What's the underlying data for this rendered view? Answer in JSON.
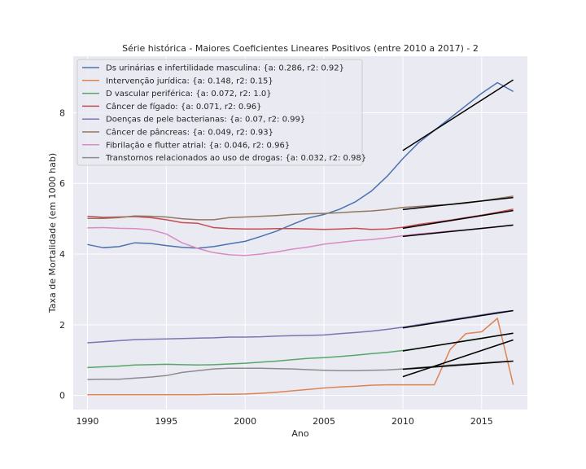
{
  "chart_data": {
    "type": "line",
    "title": "Série histórica - Maiores Coeficientes Lineares Positivos (entre 2010 a 2017) - 2",
    "xlabel": "Ano",
    "ylabel": "Taxa de Mortalidade (em 1000 hab)",
    "xlim": [
      1989.1,
      2017.9
    ],
    "ylim": [
      -0.4,
      9.6
    ],
    "x_ticks": [
      1990,
      1995,
      2000,
      2005,
      2010,
      2015
    ],
    "y_ticks": [
      0,
      2,
      4,
      6,
      8
    ],
    "grid": true,
    "legend_position": "upper-left",
    "background": "#eaeaf2",
    "x": [
      1990,
      1991,
      1992,
      1993,
      1994,
      1995,
      1996,
      1997,
      1998,
      1999,
      2000,
      2001,
      2002,
      2003,
      2004,
      2005,
      2006,
      2007,
      2008,
      2009,
      2010,
      2011,
      2012,
      2013,
      2014,
      2015,
      2016,
      2017
    ],
    "series": [
      {
        "name": "Ds urinárias e infertilidade masculina: {a: 0.286, r2: 0.92}",
        "color": "#4c72b0",
        "values": [
          4.27,
          4.18,
          4.21,
          4.32,
          4.3,
          4.24,
          4.19,
          4.17,
          4.21,
          4.29,
          4.36,
          4.5,
          4.65,
          4.84,
          5.02,
          5.12,
          5.27,
          5.48,
          5.78,
          6.2,
          6.7,
          7.15,
          7.5,
          7.85,
          8.2,
          8.55,
          8.85,
          8.6
        ],
        "trend": [
          6.93,
          8.93
        ]
      },
      {
        "name": "Intervenção jurídica: {a: 0.148, r2: 0.15}",
        "color": "#dd8452",
        "values": [
          0.02,
          0.02,
          0.02,
          0.02,
          0.02,
          0.02,
          0.02,
          0.02,
          0.03,
          0.03,
          0.04,
          0.06,
          0.09,
          0.13,
          0.17,
          0.21,
          0.24,
          0.26,
          0.29,
          0.3,
          0.3,
          0.3,
          0.3,
          1.3,
          1.75,
          1.8,
          2.18,
          0.3
        ],
        "trend": [
          0.53,
          1.57
        ]
      },
      {
        "name": "D vascular periférica: {a: 0.072, r2: 1.0}",
        "color": "#55a868",
        "values": [
          0.79,
          0.81,
          0.83,
          0.86,
          0.87,
          0.88,
          0.87,
          0.86,
          0.87,
          0.89,
          0.91,
          0.94,
          0.97,
          1.01,
          1.05,
          1.07,
          1.1,
          1.14,
          1.18,
          1.22,
          1.27,
          1.33,
          1.4,
          1.47,
          1.54,
          1.61,
          1.69,
          1.76
        ],
        "trend": [
          1.26,
          1.76
        ]
      },
      {
        "name": "Câncer de fígado: {a: 0.071, r2: 0.96}",
        "color": "#c44e52",
        "values": [
          5.07,
          5.04,
          5.05,
          5.06,
          5.03,
          4.97,
          4.89,
          4.87,
          4.75,
          4.72,
          4.71,
          4.71,
          4.72,
          4.72,
          4.71,
          4.7,
          4.71,
          4.73,
          4.7,
          4.71,
          4.76,
          4.84,
          4.9,
          4.96,
          5.03,
          5.1,
          5.18,
          5.27
        ],
        "trend": [
          4.73,
          5.23
        ]
      },
      {
        "name": "Doenças de pele bacterianas: {a: 0.07, r2: 0.99}",
        "color": "#8172b3",
        "values": [
          1.49,
          1.52,
          1.55,
          1.58,
          1.59,
          1.6,
          1.61,
          1.62,
          1.63,
          1.65,
          1.65,
          1.66,
          1.68,
          1.69,
          1.7,
          1.71,
          1.75,
          1.78,
          1.82,
          1.87,
          1.93,
          2.0,
          2.07,
          2.14,
          2.21,
          2.28,
          2.35,
          2.4
        ],
        "trend": [
          1.91,
          2.4
        ]
      },
      {
        "name": "Câncer de pâncreas: {a: 0.049, r2: 0.93}",
        "color": "#937860",
        "values": [
          5.01,
          5.01,
          5.03,
          5.08,
          5.07,
          5.05,
          5.0,
          4.97,
          4.97,
          5.03,
          5.05,
          5.07,
          5.09,
          5.12,
          5.14,
          5.15,
          5.17,
          5.2,
          5.22,
          5.26,
          5.32,
          5.35,
          5.38,
          5.4,
          5.44,
          5.5,
          5.57,
          5.64
        ],
        "trend": [
          5.26,
          5.6
        ]
      },
      {
        "name": "Fibrilação e flutter atrial: {a: 0.046, r2: 0.96}",
        "color": "#da8bc3",
        "values": [
          4.74,
          4.75,
          4.73,
          4.72,
          4.69,
          4.57,
          4.32,
          4.16,
          4.04,
          3.98,
          3.96,
          4.0,
          4.06,
          4.14,
          4.2,
          4.28,
          4.33,
          4.38,
          4.41,
          4.46,
          4.52,
          4.57,
          4.61,
          4.65,
          4.68,
          4.72,
          4.77,
          4.83
        ],
        "trend": [
          4.5,
          4.82
        ]
      },
      {
        "name": "Transtornos relacionados ao uso de drogas: {a: 0.032, r2: 0.98}",
        "color": "#8c8c8c",
        "values": [
          0.45,
          0.46,
          0.46,
          0.49,
          0.52,
          0.56,
          0.65,
          0.7,
          0.75,
          0.77,
          0.77,
          0.77,
          0.76,
          0.75,
          0.73,
          0.71,
          0.7,
          0.7,
          0.71,
          0.72,
          0.75,
          0.79,
          0.82,
          0.86,
          0.89,
          0.92,
          0.95,
          0.97
        ],
        "trend": [
          0.74,
          0.97
        ]
      }
    ],
    "trend_x": [
      2010,
      2017
    ],
    "trend_color": "#000000"
  }
}
